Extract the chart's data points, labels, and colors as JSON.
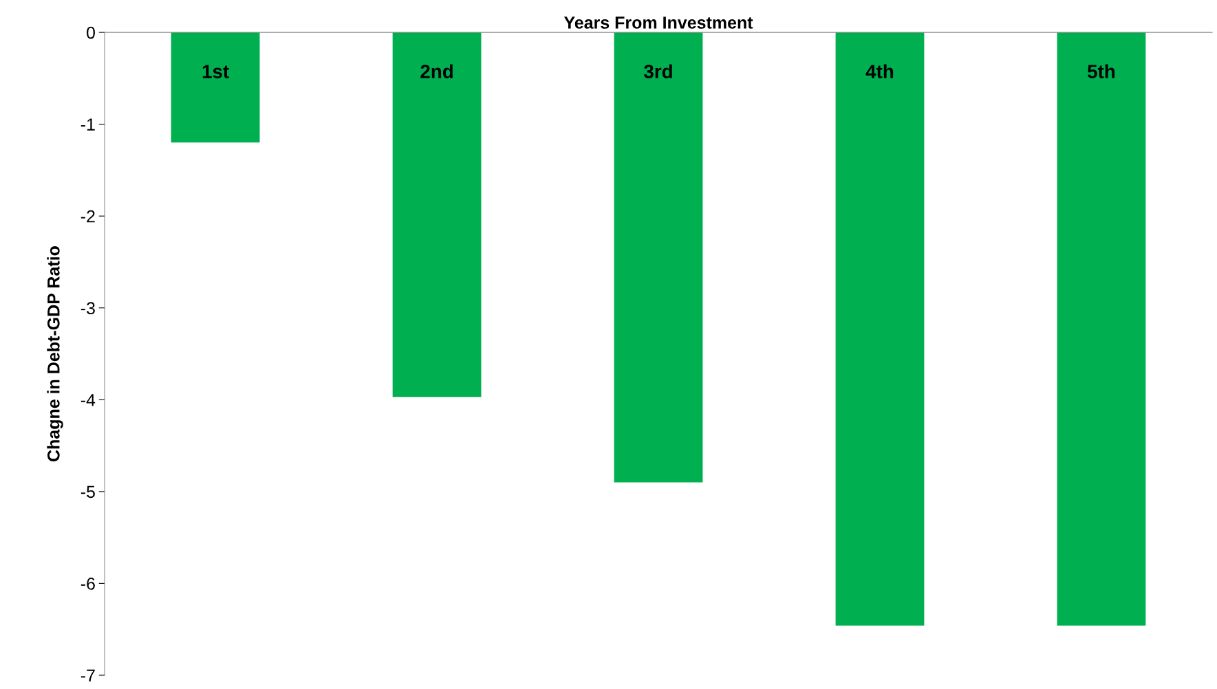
{
  "chart_data": {
    "type": "bar",
    "xlabel": "Years From Investment",
    "ylabel": "Chagne in Debt-GDP Ratio",
    "categories": [
      "1st",
      "2nd",
      "3rd",
      "4th",
      "5th"
    ],
    "values": [
      -1.2,
      -3.97,
      -4.9,
      -6.46,
      -6.46
    ],
    "color": "#00b050",
    "ylim": [
      -7,
      0
    ],
    "yticks": [
      -7,
      -6,
      -5,
      -4,
      -3,
      -2,
      -1,
      0
    ],
    "grid": false,
    "legend": false
  }
}
